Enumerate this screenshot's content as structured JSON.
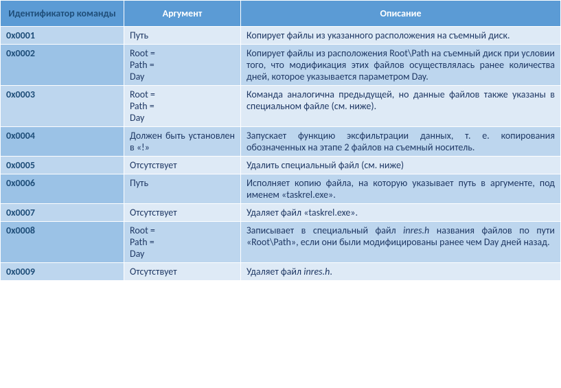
{
  "headers": {
    "id": "Идентификатор команды",
    "arg": "Аргумент",
    "desc": "Описание"
  },
  "rows": [
    {
      "id": "0x0001",
      "arg": "Путь",
      "desc": "Копирует файлы из указанного расположения на съемный диск."
    },
    {
      "id": "0x0002",
      "arg": "Root =\nPath =\nDay",
      "desc": "Копирует файлы из расположения Root\\Path на съемный диск при условии того, что модификация этих файлов осуществлялась ранее количества дней, которое указывается параметром Day."
    },
    {
      "id": "0x0003",
      "arg": "Root =\nPath =\nDay",
      "desc": "Команда аналогична предыдущей, но данные файлов также указаны в специальном файле (см. ниже)."
    },
    {
      "id": "0x0004",
      "arg": "Должен быть установлен в «!»",
      "desc": "Запускает функцию эксфильтрации данных, т. е. копирования обозначенных на этапе 2 файлов на съемный носитель."
    },
    {
      "id": "0x0005",
      "arg": "Отсутствует",
      "desc": "Удалить специальный файл (см. ниже)"
    },
    {
      "id": "0x0006",
      "arg": "Путь",
      "desc": "Исполняет копию файла, на которую указывает путь в аргументе, под именем «taskrel.exe»."
    },
    {
      "id": "0x0007",
      "arg": "Отсутствует",
      "desc": "Удаляет файл «taskrel.exe»."
    },
    {
      "id": "0x0008",
      "arg": "Root =\nPath =\nDay",
      "desc": "Записывает в специальный файл <em class=\"fn\">inres.h</em> названия файлов по пути «Root\\Path», если они были модифицированы ранее чем Day дней назад."
    },
    {
      "id": "0x0009",
      "arg": "Отсутствует",
      "desc": "Удаляет файл <em class=\"fn\">inres.h</em>."
    }
  ]
}
